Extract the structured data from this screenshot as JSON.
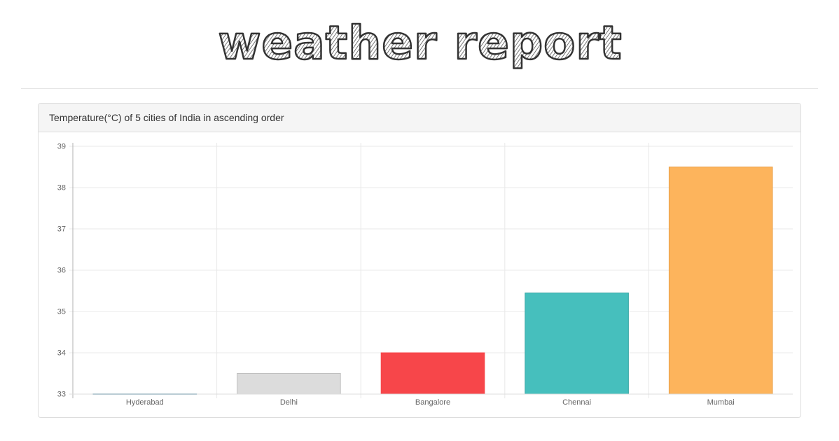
{
  "page": {
    "title": "weather report"
  },
  "panel": {
    "title": "Temperature(°C) of 5 cities of India in ascending order"
  },
  "chart_data": {
    "type": "bar",
    "title": "Temperature(°C) of 5 cities of India in ascending order",
    "xlabel": "",
    "ylabel": "",
    "categories": [
      "Hyderabad",
      "Delhi",
      "Bangalore",
      "Chennai",
      "Mumbai"
    ],
    "values": [
      33,
      33.5,
      34,
      35.45,
      38.5
    ],
    "colors": [
      "#97bbcd",
      "#dcdcdc",
      "#f7464a",
      "#46bfbd",
      "#fdb45c"
    ],
    "stroke_colors": [
      "#97bbcd",
      "#c0c0c0",
      "#f7464a",
      "#3aa8a6",
      "#e9a04a"
    ],
    "ylim": [
      33,
      39
    ],
    "yticks": [
      33,
      34,
      35,
      36,
      37,
      38,
      39
    ],
    "grid": true,
    "legend": "none"
  }
}
